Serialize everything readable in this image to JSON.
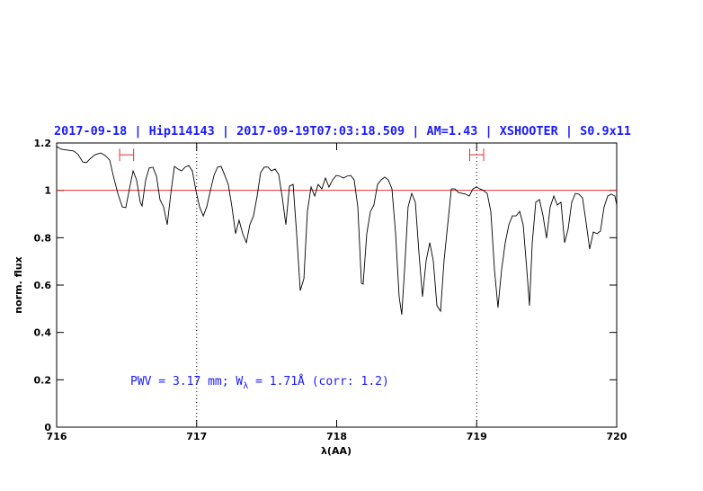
{
  "chart_data": {
    "type": "line",
    "title": "2017-09-18 | Hip114143 | 2017-09-19T07:03:18.509 | AM=1.43 | XSHOOTER | S0.9x11",
    "xlabel": "λ(AA)",
    "ylabel": "norm. flux",
    "annotation": [
      "PWV = 3.17 mm; W",
      "λ",
      " = 1.71Å (corr: 1.2)"
    ],
    "xlim": [
      716,
      720
    ],
    "ylim": [
      0,
      1.2
    ],
    "xticks": [
      716,
      717,
      718,
      719,
      720
    ],
    "yticks": [
      0,
      0.2,
      0.4,
      0.6,
      0.8,
      1,
      1.2
    ],
    "hline": {
      "value": 1,
      "color": "#e03030"
    },
    "vlines": [
      717,
      719
    ],
    "markers": [
      {
        "x": [
          716.45,
          716.55
        ],
        "y": 1.15
      },
      {
        "x": [
          718.95,
          719.05
        ],
        "y": 1.15
      }
    ],
    "marker_color": "#e03030",
    "series": [
      {
        "color": "#000000",
        "x": [
          716,
          716.032,
          716.077,
          716.122,
          716.154,
          716.186,
          716.212,
          716.244,
          716.276,
          716.315,
          716.347,
          716.379,
          716.404,
          716.437,
          716.469,
          716.494,
          716.52,
          716.546,
          716.571,
          716.597,
          716.61,
          716.636,
          716.661,
          716.687,
          716.713,
          716.738,
          716.764,
          716.79,
          716.815,
          716.841,
          716.867,
          716.892,
          716.918,
          716.944,
          716.969,
          716.995,
          717.021,
          717.047,
          717.072,
          717.098,
          717.124,
          717.149,
          717.175,
          717.201,
          717.226,
          717.252,
          717.278,
          717.303,
          717.329,
          717.355,
          717.38,
          717.406,
          717.432,
          717.457,
          717.483,
          717.509,
          717.535,
          717.56,
          717.586,
          717.612,
          717.637,
          717.663,
          717.689,
          717.714,
          717.74,
          717.766,
          717.791,
          717.817,
          717.843,
          717.868,
          717.894,
          717.92,
          717.945,
          717.971,
          717.997,
          718.022,
          718.048,
          718.074,
          718.1,
          718.125,
          718.151,
          718.177,
          718.189,
          718.215,
          718.241,
          718.266,
          718.292,
          718.318,
          718.343,
          718.369,
          718.395,
          718.421,
          718.446,
          718.465,
          718.485,
          718.51,
          718.536,
          718.562,
          718.587,
          718.613,
          718.639,
          718.665,
          718.69,
          718.716,
          718.742,
          718.767,
          718.793,
          718.819,
          718.844,
          718.87,
          718.896,
          718.921,
          718.947,
          718.973,
          718.998,
          719.024,
          719.05,
          719.075,
          719.101,
          719.127,
          719.152,
          719.178,
          719.204,
          719.23,
          719.255,
          719.281,
          719.307,
          719.332,
          719.358,
          719.377,
          719.397,
          719.422,
          719.448,
          719.474,
          719.499,
          719.525,
          719.551,
          719.576,
          719.602,
          719.628,
          719.653,
          719.679,
          719.705,
          719.73,
          719.756,
          719.782,
          719.807,
          719.833,
          719.859,
          719.884,
          719.91,
          719.936,
          719.961,
          719.987,
          720
        ],
        "values": [
          1.185,
          1.174,
          1.17,
          1.166,
          1.151,
          1.12,
          1.117,
          1.136,
          1.151,
          1.158,
          1.147,
          1.128,
          1.063,
          0.987,
          0.93,
          0.927,
          1.006,
          1.082,
          1.044,
          0.95,
          0.934,
          1.044,
          1.094,
          1.098,
          1.06,
          0.961,
          0.93,
          0.855,
          0.984,
          1.101,
          1.09,
          1.082,
          1.098,
          1.105,
          1.082,
          0.999,
          0.93,
          0.892,
          0.93,
          0.999,
          1.063,
          1.098,
          1.101,
          1.063,
          1.025,
          0.93,
          0.817,
          0.874,
          0.817,
          0.779,
          0.855,
          0.892,
          0.976,
          1.075,
          1.098,
          1.098,
          1.082,
          1.09,
          1.067,
          0.968,
          0.855,
          1.018,
          1.025,
          0.817,
          0.577,
          0.627,
          0.911,
          1.014,
          0.976,
          1.025,
          1.006,
          1.052,
          1.014,
          1.044,
          1.063,
          1.06,
          1.052,
          1.06,
          1.063,
          1.044,
          0.93,
          0.608,
          0.604,
          0.817,
          0.911,
          0.938,
          1.025,
          1.044,
          1.056,
          1.044,
          1.006,
          0.817,
          0.551,
          0.475,
          0.665,
          0.93,
          0.987,
          0.95,
          0.741,
          0.551,
          0.703,
          0.779,
          0.703,
          0.513,
          0.49,
          0.703,
          0.855,
          1.006,
          1.006,
          0.991,
          0.987,
          0.984,
          0.976,
          1.006,
          1.014,
          1.006,
          0.999,
          0.987,
          0.911,
          0.665,
          0.505,
          0.665,
          0.779,
          0.855,
          0.892,
          0.892,
          0.911,
          0.855,
          0.665,
          0.513,
          0.779,
          0.95,
          0.961,
          0.892,
          0.798,
          0.93,
          0.976,
          0.938,
          0.95,
          0.779,
          0.836,
          0.95,
          0.987,
          0.984,
          0.968,
          0.862,
          0.752,
          0.824,
          0.817,
          0.828,
          0.93,
          0.976,
          0.984,
          0.976,
          0.938
        ]
      }
    ]
  }
}
